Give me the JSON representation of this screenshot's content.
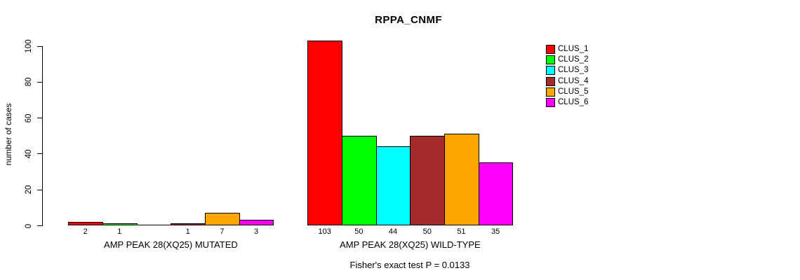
{
  "chart_data": {
    "type": "bar",
    "title": "RPPA_CNMF",
    "ylabel": "number of cases",
    "ylim": [
      0,
      100
    ],
    "yticks": [
      0,
      20,
      40,
      60,
      80,
      100
    ],
    "grid": false,
    "legend_position": "right",
    "legend": [
      {
        "name": "CLUS_1",
        "color": "#FF0000"
      },
      {
        "name": "CLUS_2",
        "color": "#00FF00"
      },
      {
        "name": "CLUS_3",
        "color": "#00FFFF"
      },
      {
        "name": "CLUS_4",
        "color": "#A52A2A"
      },
      {
        "name": "CLUS_5",
        "color": "#FFA500"
      },
      {
        "name": "CLUS_6",
        "color": "#FF00FF"
      }
    ],
    "groups": [
      {
        "label": "AMP PEAK 28(XQ25) MUTATED",
        "values": [
          2,
          1,
          0,
          1,
          7,
          3
        ],
        "bar_labels": [
          "2",
          "1",
          "",
          "1",
          "7",
          "3"
        ]
      },
      {
        "label": "AMP PEAK 28(XQ25) WILD-TYPE",
        "values": [
          103,
          50,
          44,
          50,
          51,
          35
        ],
        "bar_labels": [
          "103",
          "50",
          "44",
          "50",
          "51",
          "35"
        ]
      }
    ],
    "footnote": "Fisher's exact test P = 0.0133"
  }
}
